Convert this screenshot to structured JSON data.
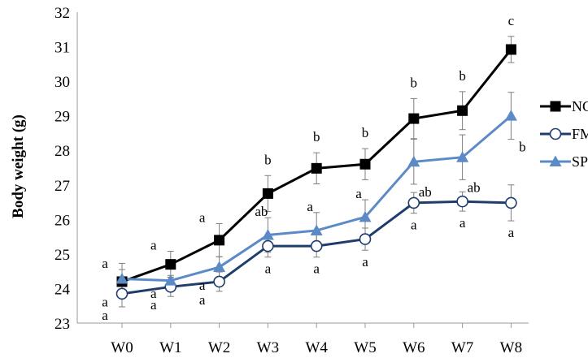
{
  "chart_data": {
    "type": "line",
    "title": "",
    "xlabel": "",
    "ylabel": "Body  weight (g)",
    "categories": [
      "W0",
      "W1",
      "W2",
      "W3",
      "W4",
      "W5",
      "W6",
      "W7",
      "W8"
    ],
    "ylim": [
      23,
      32
    ],
    "yticks": [
      23,
      24,
      25,
      26,
      27,
      28,
      29,
      30,
      31,
      32
    ],
    "grid": false,
    "legend_position": "right",
    "series": [
      {
        "name": "NC",
        "color": "#000000",
        "marker": "square",
        "values": [
          24.2,
          24.7,
          25.4,
          26.75,
          27.48,
          27.6,
          28.92,
          29.15,
          30.92
        ],
        "errors": [
          0.35,
          0.38,
          0.48,
          0.52,
          0.45,
          0.45,
          0.58,
          0.55,
          0.38
        ],
        "labels": [
          "a",
          "a",
          "a",
          "b",
          "b",
          "b",
          "b",
          "b",
          "c"
        ]
      },
      {
        "name": "FM",
        "color": "#1F3D6B",
        "marker": "circle",
        "values": [
          23.85,
          24.05,
          24.2,
          25.23,
          25.23,
          25.43,
          26.48,
          26.52,
          26.48
        ],
        "errors": [
          0.38,
          0.28,
          0.28,
          0.32,
          0.32,
          0.32,
          0.3,
          0.28,
          0.52
        ],
        "labels": [
          "a",
          "a",
          "a",
          "a",
          "a",
          "a",
          "a",
          "a",
          "a"
        ]
      },
      {
        "name": "SP",
        "color": "#5B8AC6",
        "marker": "triangle",
        "values": [
          24.28,
          24.23,
          24.62,
          25.55,
          25.68,
          26.07,
          27.67,
          27.8,
          29.0
        ],
        "errors": [
          0.45,
          0.15,
          0.3,
          0.5,
          0.52,
          0.5,
          0.65,
          0.65,
          0.68
        ],
        "labels": [
          "a",
          "a",
          "a",
          "ab",
          "a",
          "a",
          "ab",
          "ab",
          "b"
        ]
      }
    ]
  }
}
